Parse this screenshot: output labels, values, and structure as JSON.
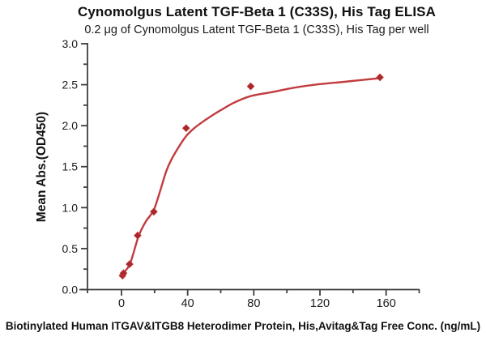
{
  "chart_data": {
    "type": "line",
    "title": "Cynomolgus Latent TGF-Beta 1 (C33S), His Tag ELISA",
    "subtitle": "0.2 μg of Cynomolgus Latent TGF-Beta 1 (C33S), His Tag per well",
    "xlabel": "Biotinylated Human ITGAV&ITGB8 Heterodimer Protein, His,Avitag&Tag Free Conc. (ng/mL)",
    "ylabel": "Mean Abs.(OD450)",
    "xlim": [
      -25,
      180
    ],
    "ylim": [
      0,
      3
    ],
    "grid": false,
    "legend_position": "none",
    "x_ticks_major": [
      0,
      40,
      80,
      120,
      160
    ],
    "x_tick_labels": [
      "0",
      "40",
      "80",
      "120",
      "160"
    ],
    "x_ticks_minor": [
      20,
      60,
      100,
      140,
      180
    ],
    "y_ticks_major": [
      0,
      0.5,
      1,
      1.5,
      2,
      2.5,
      3
    ],
    "y_tick_labels": [
      "0.0",
      "0.5",
      "1.0",
      "1.5",
      "2.0",
      "2.5",
      "3.0"
    ],
    "y_ticks_minor": [
      0.25,
      0.75,
      1.25,
      1.75,
      2.25,
      2.75
    ],
    "series": [
      {
        "name": "Cynomolgus Latent TGF-Beta 1 (C33S), His Tag",
        "marker": "diamond",
        "x": [
          0.61,
          1.22,
          4.88,
          9.77,
          19.53,
          39.06,
          78.13,
          156.25
        ],
        "y": [
          0.17,
          0.2,
          0.31,
          0.66,
          0.95,
          1.97,
          2.48,
          2.59
        ]
      }
    ],
    "fit_curve": {
      "x": [
        0.5,
        1.2,
        2.4,
        4.9,
        7,
        9.8,
        12,
        15,
        19.5,
        23,
        27,
        30,
        34,
        39,
        44,
        50,
        56,
        61,
        68,
        78,
        91,
        105,
        117,
        137,
        156.25
      ],
      "y": [
        0.155,
        0.19,
        0.23,
        0.3,
        0.43,
        0.62,
        0.73,
        0.84,
        0.97,
        1.18,
        1.44,
        1.58,
        1.72,
        1.87,
        1.97,
        2.06,
        2.14,
        2.2,
        2.28,
        2.36,
        2.41,
        2.465,
        2.5,
        2.54,
        2.58
      ]
    },
    "colors": {
      "curve_line": "#C23B3E",
      "marker_fill": "#A9282C",
      "axis": "#3E3E3E",
      "text": "#1A1A1A"
    }
  }
}
